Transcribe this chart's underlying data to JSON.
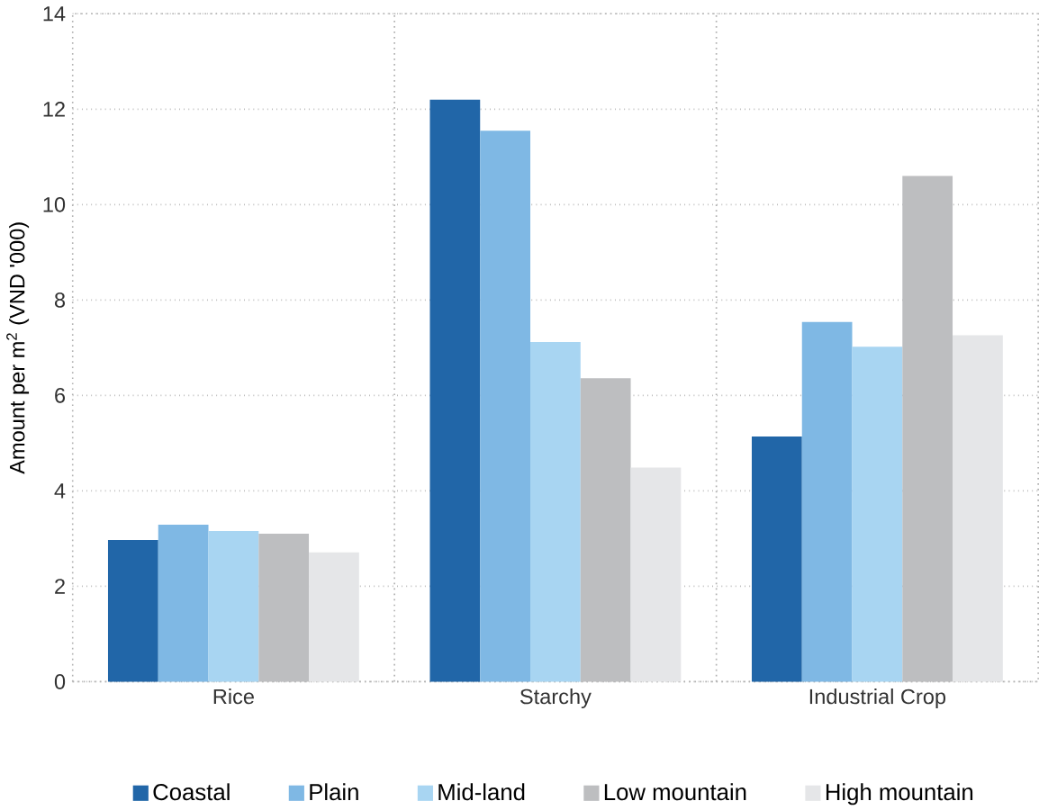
{
  "chart_data": {
    "type": "bar",
    "ylabel": "Amount per m$^{2}$ (VND '000)",
    "categories": [
      "Rice",
      "Starchy",
      "Industrial Crop"
    ],
    "series": [
      {
        "name": "Coastal",
        "color": "#2166a8",
        "values": [
          2.97,
          12.2,
          5.14
        ]
      },
      {
        "name": "Plain",
        "color": "#7fb8e4",
        "values": [
          3.29,
          11.55,
          7.54
        ]
      },
      {
        "name": "Mid-land",
        "color": "#a8d5f2",
        "values": [
          3.16,
          7.12,
          7.02
        ]
      },
      {
        "name": "Low mountain",
        "color": "#bdbec0",
        "values": [
          3.1,
          6.36,
          10.6
        ]
      },
      {
        "name": "High mountain",
        "color": "#e5e6e8",
        "values": [
          2.71,
          4.49,
          7.26
        ]
      }
    ],
    "ylim": [
      0,
      14
    ],
    "yticks": [
      0,
      2,
      4,
      6,
      8,
      10,
      12,
      14
    ],
    "grid": "y",
    "legend": "bottom"
  }
}
